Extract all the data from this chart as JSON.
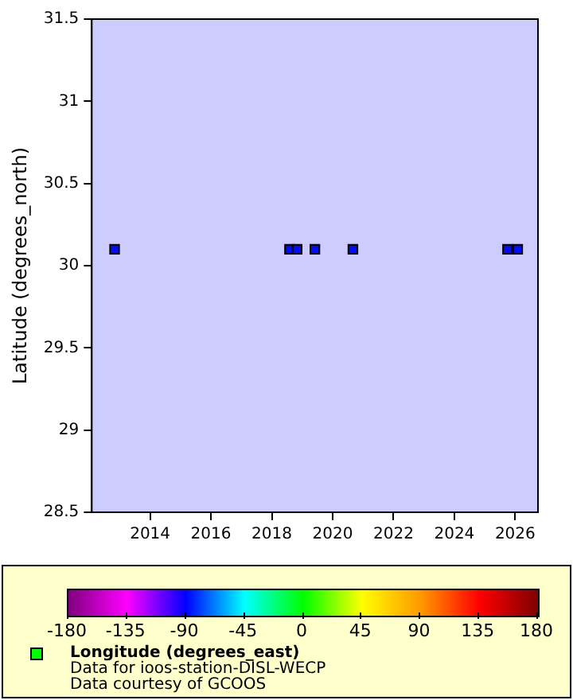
{
  "chart_data": {
    "type": "scatter",
    "ylabel": "Latitude (degrees_north)",
    "clabel": "Longitude (degrees_east)",
    "x": [
      "2012-11",
      "2018-08",
      "2018-11",
      "2019-06",
      "2020-09",
      "2025-10",
      "2026-02"
    ],
    "values": [
      30.1,
      30.1,
      30.1,
      30.1,
      30.1,
      30.1,
      30.1
    ],
    "cvalues": [
      -88,
      -88,
      -88,
      -88,
      -88,
      -88,
      -88
    ],
    "xlim": [
      "2012-02",
      "2026-10"
    ],
    "xticks": [
      "2014",
      "2016",
      "2018",
      "2020",
      "2022",
      "2024",
      "2026"
    ],
    "ylim": [
      28.5,
      31.5
    ],
    "yticks": [
      28.5,
      29,
      29.5,
      30,
      30.5,
      31,
      31.5
    ],
    "clim": [
      -180,
      180
    ],
    "cticks": [
      -180,
      -135,
      -90,
      -45,
      0,
      45,
      90,
      135,
      180
    ],
    "marker": "square",
    "grid": false,
    "annotations": [
      "Data for ioos-station-DISL-WECP",
      "Data courtesy of GCOOS"
    ]
  }
}
